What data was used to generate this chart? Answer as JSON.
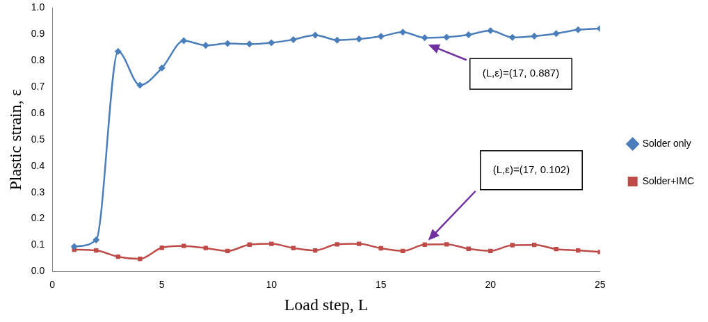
{
  "chart_data": {
    "type": "line",
    "xlabel": "Load step, L",
    "ylabel": "Plastic strain, ε",
    "x": [
      1,
      2,
      3,
      4,
      5,
      6,
      7,
      8,
      9,
      10,
      11,
      12,
      13,
      14,
      15,
      16,
      17,
      18,
      19,
      20,
      21,
      22,
      23,
      24,
      25
    ],
    "series": [
      {
        "name": "Solder only",
        "color": "#4a7ebb",
        "marker": "diamond",
        "values": [
          0.095,
          0.12,
          0.835,
          0.707,
          0.772,
          0.876,
          0.858,
          0.865,
          0.863,
          0.868,
          0.88,
          0.897,
          0.878,
          0.882,
          0.892,
          0.908,
          0.887,
          0.889,
          0.898,
          0.914,
          0.888,
          0.893,
          0.903,
          0.917,
          0.922
        ]
      },
      {
        "name": "Solder+IMC",
        "color": "#be4b48",
        "marker": "square",
        "values": [
          0.083,
          0.08,
          0.056,
          0.048,
          0.09,
          0.097,
          0.089,
          0.078,
          0.102,
          0.105,
          0.089,
          0.08,
          0.103,
          0.105,
          0.088,
          0.078,
          0.102,
          0.103,
          0.086,
          0.078,
          0.1,
          0.101,
          0.085,
          0.08,
          0.074
        ]
      }
    ],
    "xlim": [
      0,
      25
    ],
    "xticks": [
      0,
      5,
      10,
      15,
      20,
      25
    ],
    "ylim": [
      0,
      1
    ],
    "yticks": [
      {
        "value": 0,
        "label": "0.0"
      },
      0.1,
      0.2,
      0.3,
      0.4,
      0.5,
      0.6,
      0.7,
      0.8,
      0.9,
      {
        "value": 1,
        "label": "1.0"
      }
    ],
    "grid": false,
    "legend": "right",
    "annotations": [
      "(L,ε)=(17, 0.887)",
      "(L,ε)=(17, 0.102)"
    ]
  }
}
